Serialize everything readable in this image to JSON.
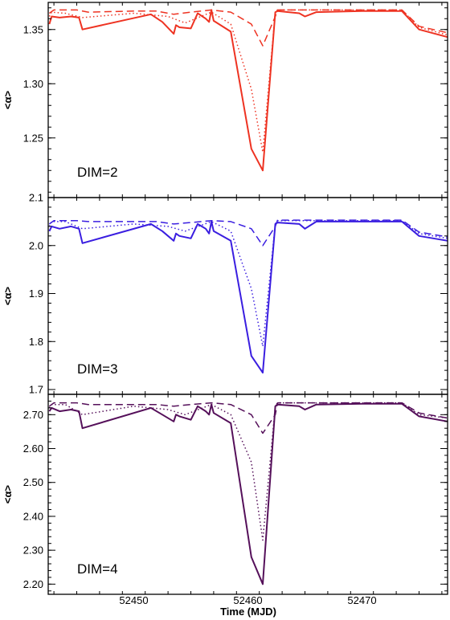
{
  "chart_data": [
    {
      "type": "line",
      "annotation": "DIM=2",
      "ylabel": "<α>",
      "color": "#ee3322",
      "xlim": [
        52442.5,
        52477.5
      ],
      "ylim": [
        1.195,
        1.375
      ],
      "yticks": [
        1.25,
        1.3,
        1.35
      ],
      "ytick_labels": [
        "1.25",
        "1.30",
        "1.35"
      ],
      "series": [
        {
          "style": "solid",
          "x": [
            52442.6,
            52442.8,
            52443.5,
            52444.5,
            52445.2,
            52445.5,
            52451.5,
            52452.5,
            52453.5,
            52453.7,
            52454,
            52455,
            52455.6,
            52456.3,
            52456.6,
            52456.8,
            52457,
            52458.5,
            52460.3,
            52461.3,
            52462.4,
            52462.6,
            52464.5,
            52465,
            52466,
            52470,
            52473.5,
            52475,
            52477.5
          ],
          "y": [
            1.355,
            1.362,
            1.361,
            1.362,
            1.361,
            1.35,
            1.364,
            1.357,
            1.346,
            1.354,
            1.352,
            1.351,
            1.365,
            1.36,
            1.357,
            1.368,
            1.358,
            1.348,
            1.24,
            1.22,
            1.366,
            1.367,
            1.365,
            1.362,
            1.366,
            1.367,
            1.367,
            1.35,
            1.343
          ]
        },
        {
          "style": "dotted",
          "x": [
            52442.6,
            52442.8,
            52444,
            52445.5,
            52450,
            52453,
            52454.5,
            52456.8,
            52458.5,
            52460.3,
            52461.3,
            52462.4,
            52462.6,
            52470,
            52473.5,
            52475,
            52477.5
          ],
          "y": [
            1.362,
            1.366,
            1.365,
            1.361,
            1.365,
            1.362,
            1.356,
            1.366,
            1.355,
            1.295,
            1.237,
            1.366,
            1.368,
            1.368,
            1.368,
            1.352,
            1.345
          ]
        },
        {
          "style": "dashed",
          "x": [
            52442.6,
            52443,
            52445,
            52446,
            52450,
            52452,
            52453.5,
            52455,
            52456.8,
            52458.5,
            52460.3,
            52461.3,
            52462.4,
            52462.6,
            52470,
            52473.5,
            52475,
            52477.5
          ],
          "y": [
            1.365,
            1.368,
            1.368,
            1.366,
            1.367,
            1.367,
            1.364,
            1.366,
            1.368,
            1.366,
            1.355,
            1.335,
            1.362,
            1.368,
            1.368,
            1.368,
            1.353,
            1.347
          ]
        }
      ]
    },
    {
      "type": "line",
      "annotation": "DIM=3",
      "ylabel": "<α>",
      "color": "#3a1ee0",
      "xlim": [
        52442.5,
        52477.5
      ],
      "ylim": [
        1.69,
        2.1
      ],
      "yticks": [
        1.7,
        1.8,
        1.9,
        2.0,
        2.1
      ],
      "ytick_labels": [
        "1.7",
        "1.8",
        "1.9",
        "2.0",
        "2.1"
      ],
      "series": [
        {
          "style": "solid",
          "x": [
            52442.6,
            52442.8,
            52443.5,
            52444.5,
            52445.2,
            52445.5,
            52451.5,
            52452.5,
            52453.5,
            52453.7,
            52454,
            52455,
            52455.6,
            52456.3,
            52456.6,
            52456.8,
            52457,
            52458.5,
            52460.3,
            52461.3,
            52462.4,
            52462.6,
            52464.5,
            52465,
            52466,
            52470,
            52473.5,
            52475,
            52477.5
          ],
          "y": [
            2.03,
            2.04,
            2.035,
            2.04,
            2.035,
            2.005,
            2.045,
            2.03,
            2.01,
            2.025,
            2.02,
            2.015,
            2.045,
            2.035,
            2.025,
            2.05,
            2.03,
            2.01,
            1.77,
            1.735,
            2.045,
            2.048,
            2.045,
            2.035,
            2.05,
            2.05,
            2.05,
            2.02,
            2.01
          ]
        },
        {
          "style": "dotted",
          "x": [
            52442.6,
            52442.8,
            52444,
            52445.5,
            52450,
            52453,
            52454.5,
            52456.8,
            52458.5,
            52460.3,
            52461.3,
            52462.4,
            52462.6,
            52470,
            52473.5,
            52475,
            52477.5
          ],
          "y": [
            2.04,
            2.05,
            2.05,
            2.035,
            2.045,
            2.04,
            2.03,
            2.05,
            2.03,
            1.91,
            1.79,
            2.045,
            2.052,
            2.052,
            2.052,
            2.025,
            2.015
          ]
        },
        {
          "style": "dashed",
          "x": [
            52442.6,
            52443,
            52445,
            52446,
            52450,
            52452,
            52453.5,
            52455,
            52456.8,
            52458.5,
            52460.3,
            52461.3,
            52462.4,
            52462.6,
            52470,
            52473.5,
            52475,
            52477.5
          ],
          "y": [
            2.045,
            2.052,
            2.052,
            2.05,
            2.05,
            2.05,
            2.045,
            2.048,
            2.052,
            2.05,
            2.035,
            2.0,
            2.04,
            2.053,
            2.053,
            2.053,
            2.028,
            2.018
          ]
        }
      ]
    },
    {
      "type": "line",
      "annotation": "DIM=4",
      "ylabel": "<α>",
      "color": "#55105a",
      "xlim": [
        52442.5,
        52477.5
      ],
      "ylim": [
        2.17,
        2.76
      ],
      "yticks": [
        2.2,
        2.3,
        2.4,
        2.5,
        2.6,
        2.7
      ],
      "ytick_labels": [
        "2.20",
        "2.30",
        "2.40",
        "2.50",
        "2.60",
        "2.70"
      ],
      "series": [
        {
          "style": "solid",
          "x": [
            52442.6,
            52442.8,
            52443.5,
            52444.5,
            52445.2,
            52445.5,
            52451.5,
            52452.5,
            52453.5,
            52453.7,
            52454,
            52455,
            52455.6,
            52456.3,
            52456.6,
            52456.8,
            52457,
            52458.5,
            52460.3,
            52461.3,
            52462.4,
            52462.6,
            52464.5,
            52465,
            52466,
            52470,
            52473.5,
            52475,
            52477.5
          ],
          "y": [
            2.71,
            2.72,
            2.71,
            2.715,
            2.71,
            2.66,
            2.72,
            2.7,
            2.68,
            2.7,
            2.695,
            2.685,
            2.725,
            2.71,
            2.7,
            2.73,
            2.705,
            2.675,
            2.28,
            2.2,
            2.725,
            2.73,
            2.725,
            2.715,
            2.73,
            2.732,
            2.732,
            2.695,
            2.68
          ]
        },
        {
          "style": "dotted",
          "x": [
            52442.6,
            52442.8,
            52444,
            52445.5,
            52450,
            52453,
            52454.5,
            52456.8,
            52458.5,
            52460.3,
            52461.3,
            52462.4,
            52462.6,
            52470,
            52473.5,
            52475,
            52477.5
          ],
          "y": [
            2.72,
            2.73,
            2.73,
            2.7,
            2.725,
            2.715,
            2.7,
            2.73,
            2.7,
            2.56,
            2.33,
            2.725,
            2.735,
            2.735,
            2.735,
            2.7,
            2.69
          ]
        },
        {
          "style": "dashed",
          "x": [
            52442.6,
            52443,
            52445,
            52446,
            52450,
            52452,
            52453.5,
            52455,
            52456.8,
            52458.5,
            52460.3,
            52461.3,
            52462.4,
            52462.6,
            52470,
            52473.5,
            52475,
            52477.5
          ],
          "y": [
            2.725,
            2.735,
            2.735,
            2.73,
            2.73,
            2.73,
            2.725,
            2.73,
            2.735,
            2.73,
            2.7,
            2.645,
            2.7,
            2.735,
            2.735,
            2.735,
            2.705,
            2.69
          ]
        }
      ]
    }
  ],
  "xaxis": {
    "label": "Time (MJD)",
    "ticks": [
      52450,
      52460,
      52470
    ],
    "tick_labels": [
      "52450",
      "52460",
      "52470"
    ]
  }
}
